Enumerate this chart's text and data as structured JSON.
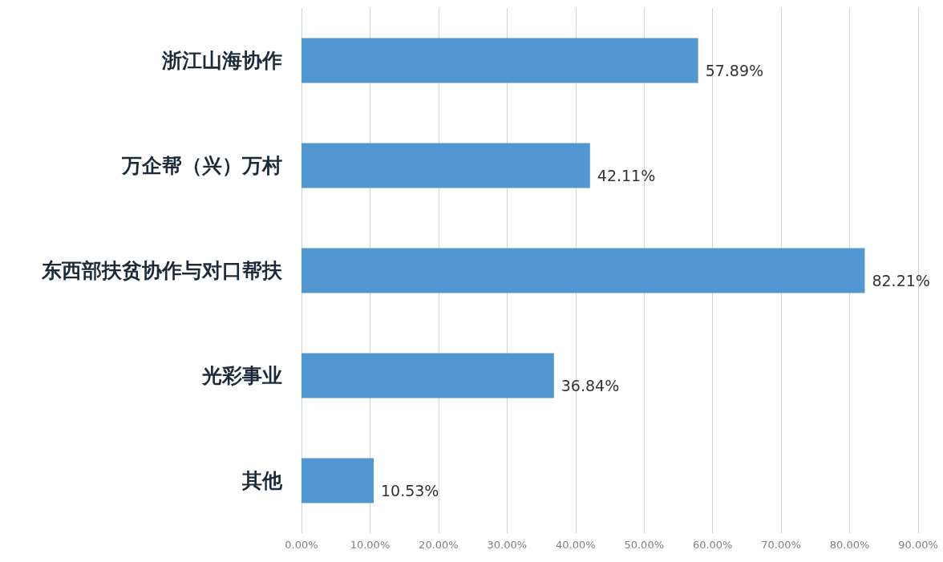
{
  "chart_data": {
    "type": "bar",
    "orientation": "horizontal",
    "categories": [
      "浙江山海协作",
      "万企帮（兴）万村",
      "东西部扶贫协作与对口帮扶",
      "光彩事业",
      "其他"
    ],
    "values": [
      57.89,
      42.11,
      82.21,
      36.84,
      10.53
    ],
    "value_labels": [
      "57.89%",
      "42.11%",
      "82.21%",
      "36.84%",
      "10.53%"
    ],
    "color": "#5197d1",
    "xlim": [
      0,
      90
    ],
    "xticks": [
      {
        "value": 0,
        "label": "0.00%"
      },
      {
        "value": 10,
        "label": "10.00%"
      },
      {
        "value": 20,
        "label": "20.00%"
      },
      {
        "value": 30,
        "label": "30.00%"
      },
      {
        "value": 40,
        "label": "40.00%"
      },
      {
        "value": 50,
        "label": "50.00%"
      },
      {
        "value": 60,
        "label": "60.00%"
      },
      {
        "value": 70,
        "label": "70.00%"
      },
      {
        "value": 80,
        "label": "80.00%"
      },
      {
        "value": 90,
        "label": "90.00%"
      }
    ],
    "grid": "x"
  }
}
